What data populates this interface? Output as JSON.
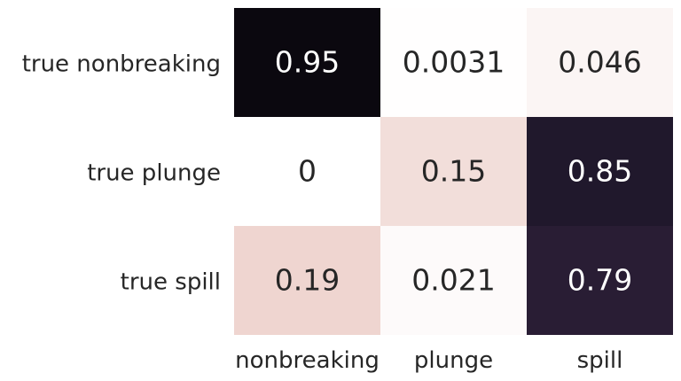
{
  "chart_data": {
    "type": "heatmap",
    "title": "",
    "xlabel": "",
    "ylabel": "",
    "x_categories": [
      "nonbreaking",
      "plunge",
      "spill"
    ],
    "y_categories": [
      "true nonbreaking",
      "true plunge",
      "true spill"
    ],
    "values": [
      [
        0.95,
        0.0031,
        0.046
      ],
      [
        0,
        0.15,
        0.85
      ],
      [
        0.19,
        0.021,
        0.79
      ]
    ],
    "value_labels": [
      [
        "0.95",
        "0.0031",
        "0.046"
      ],
      [
        "0",
        "0.15",
        "0.85"
      ],
      [
        "0.19",
        "0.021",
        "0.79"
      ]
    ],
    "colorbar": false,
    "colormap": [
      "#ffffff",
      "#f3e0dc",
      "#e6beb9",
      "#b58593",
      "#6a4a6c",
      "#34233f",
      "#1f172b",
      "#000000"
    ]
  }
}
